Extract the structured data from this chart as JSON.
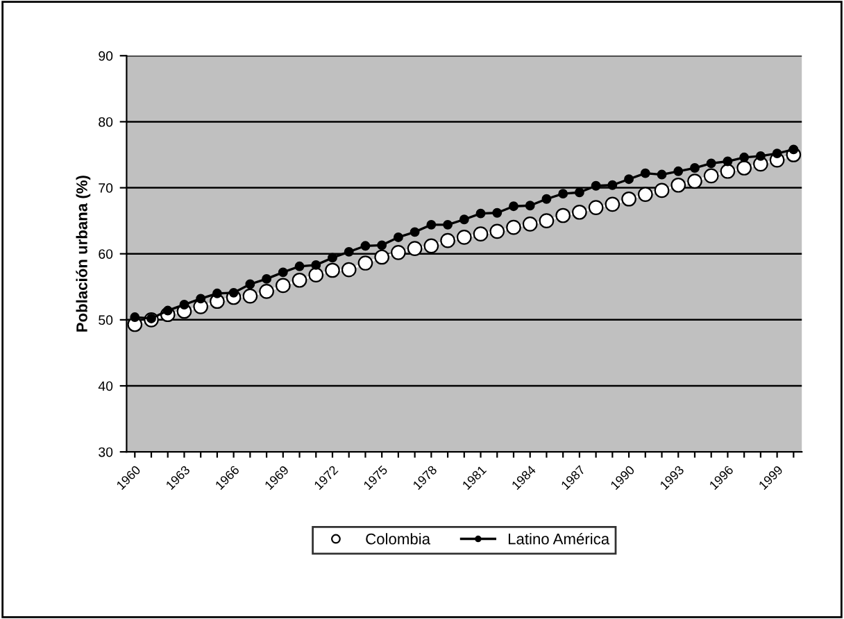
{
  "chart_data": {
    "type": "line",
    "ylabel": "Población urbana (%)",
    "categories": [
      "1960",
      null,
      null,
      "1963",
      null,
      null,
      "1966",
      null,
      null,
      "1969",
      null,
      null,
      "1972",
      null,
      null,
      "1975",
      null,
      null,
      "1978",
      null,
      null,
      "1981",
      null,
      null,
      "1984",
      null,
      null,
      "1987",
      null,
      null,
      "1990",
      null,
      null,
      "1993",
      null,
      null,
      "1996",
      null,
      null,
      "1999",
      null
    ],
    "series": [
      {
        "name": "Colombia",
        "color": "#ffffff",
        "values": [
          49.3,
          50.0,
          50.8,
          51.3,
          52.0,
          52.8,
          53.4,
          53.6,
          54.3,
          55.2,
          56.0,
          56.8,
          57.5,
          57.6,
          58.6,
          59.5,
          60.2,
          60.8,
          61.2,
          62.0,
          62.5,
          63.0,
          63.4,
          64.0,
          64.5,
          65.0,
          65.8,
          66.3,
          67.0,
          67.5,
          68.3,
          69.0,
          69.6,
          70.4,
          71.0,
          71.8,
          72.5,
          73.0,
          73.6,
          74.2,
          75.0
        ]
      },
      {
        "name": "Latino América",
        "color": "#000000",
        "values": [
          50.4,
          50.2,
          51.4,
          52.3,
          53.2,
          54.0,
          54.1,
          55.4,
          56.2,
          57.2,
          58.1,
          58.3,
          59.4,
          60.3,
          61.2,
          61.3,
          62.5,
          63.3,
          64.4,
          64.4,
          65.2,
          66.1,
          66.2,
          67.2,
          67.3,
          68.3,
          69.1,
          69.3,
          70.3,
          70.4,
          71.3,
          72.2,
          72.0,
          72.5,
          73.0,
          73.7,
          74.0,
          74.6,
          74.8,
          75.2,
          75.8
        ]
      }
    ],
    "ylim": [
      30,
      90
    ],
    "yticks": [
      30,
      40,
      50,
      60,
      70,
      80,
      90
    ],
    "grid": "y",
    "legend": "bottom",
    "marker": "circle",
    "line_style": "solid"
  }
}
